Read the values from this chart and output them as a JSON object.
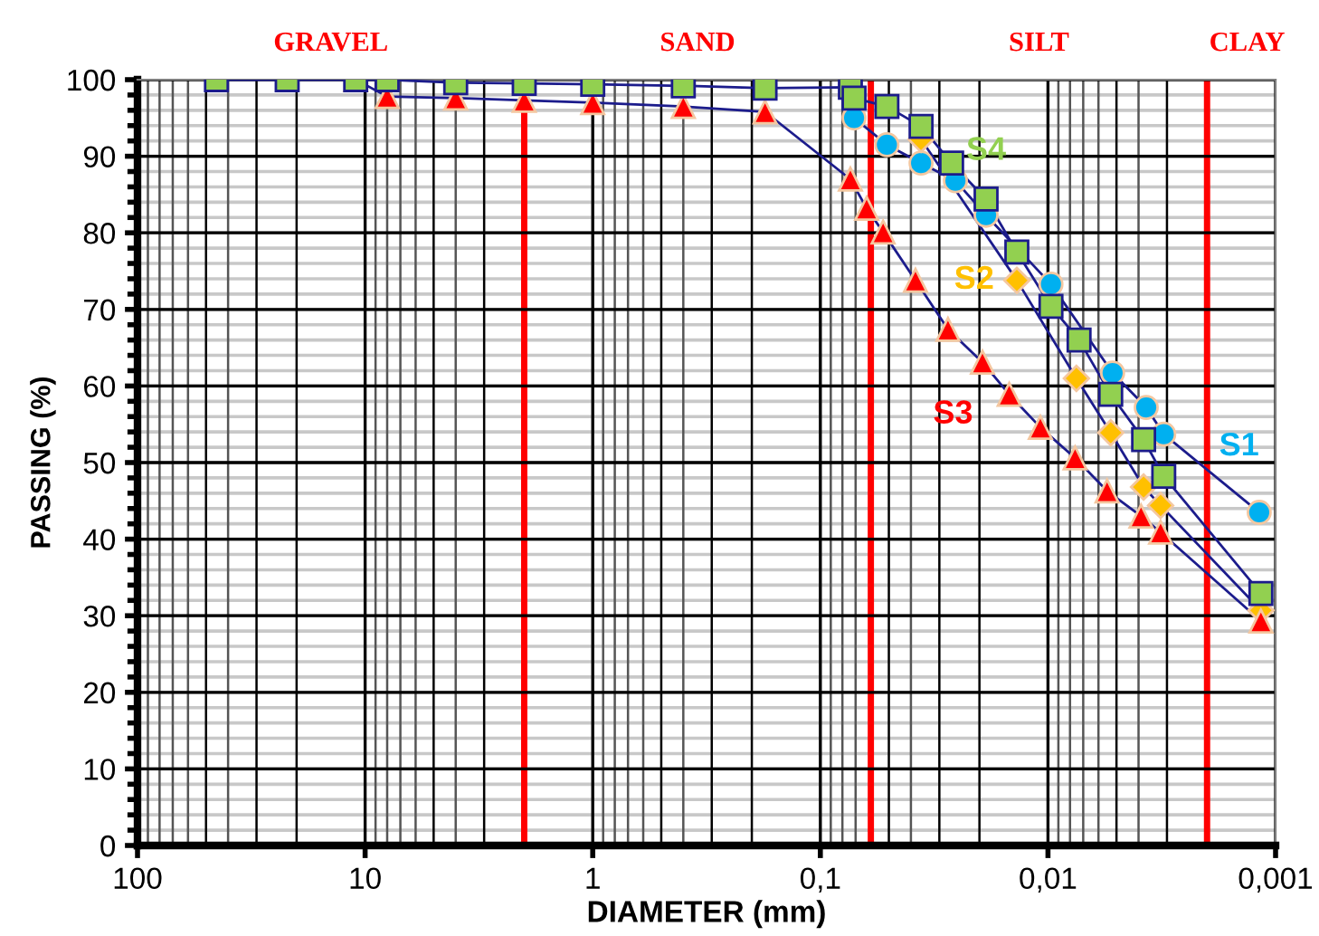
{
  "chart_data": {
    "type": "line",
    "xlabel": "DIAMETER (mm)",
    "ylabel": "PASSING (%)",
    "log": "x",
    "xlim": [
      100,
      0.001
    ],
    "ylim": [
      0,
      100
    ],
    "xticks": [
      {
        "value": 100,
        "label": "100"
      },
      {
        "value": 10,
        "label": "10"
      },
      {
        "value": 1,
        "label": "1"
      },
      {
        "value": 0.1,
        "label": "0,1"
      },
      {
        "value": 0.01,
        "label": "0,01"
      },
      {
        "value": 0.001,
        "label": "0,001"
      }
    ],
    "yticks": [
      0,
      10,
      20,
      30,
      40,
      50,
      60,
      70,
      80,
      90,
      100
    ],
    "grid": true,
    "legend": false,
    "series": [
      {
        "name": "S1",
        "color": "#00b0f0",
        "marker": "circle",
        "x": [
          0.0711,
          0.051,
          0.0361,
          0.0255,
          0.0187,
          0.0097,
          0.0052,
          0.0037,
          0.0031,
          0.00118
        ],
        "values": [
          95.0,
          91.5,
          89.1,
          86.8,
          82.3,
          73.3,
          61.7,
          57.2,
          53.7,
          43.5
        ]
      },
      {
        "name": "S2",
        "color": "#ffc000",
        "marker": "diamond",
        "x": [
          0.0361,
          0.0137,
          0.0075,
          0.0053,
          0.0038,
          0.0032,
          0.00116
        ],
        "values": [
          92.2,
          73.8,
          61.0,
          53.9,
          46.8,
          44.4,
          30.7
        ]
      },
      {
        "name": "S3",
        "color": "#ff0000",
        "marker": "triangle",
        "x": [
          11,
          8,
          4,
          2,
          1,
          0.4,
          0.175,
          0.0738,
          0.0626,
          0.053,
          0.0382,
          0.0275,
          0.0194,
          0.0148,
          0.0108,
          0.0076,
          0.0055,
          0.0039,
          0.0032,
          0.00116
        ],
        "values": [
          100,
          97.8,
          97.6,
          97.3,
          97.0,
          96.5,
          95.8,
          87.0,
          83.2,
          80.1,
          73.8,
          67.4,
          63.1,
          58.9,
          54.6,
          50.6,
          46.3,
          43.0,
          40.9,
          29.3
        ]
      },
      {
        "name": "S4",
        "color": "#92d050",
        "marker": "square",
        "x": [
          45,
          22,
          11,
          8,
          4,
          2,
          1,
          0.4,
          0.175,
          0.0738,
          0.0711,
          0.051,
          0.0361,
          0.0265,
          0.0187,
          0.0137,
          0.0097,
          0.0073,
          0.0053,
          0.0038,
          0.0031,
          0.00116
        ],
        "values": [
          100,
          100,
          100,
          100,
          99.6,
          99.5,
          99.4,
          99.2,
          98.9,
          99.0,
          97.6,
          96.5,
          93.9,
          89.1,
          84.4,
          77.5,
          70.4,
          66.0,
          58.9,
          53.0,
          48.2,
          32.9
        ]
      }
    ],
    "ref_lines": [
      {
        "axis": "x",
        "value": 2,
        "color": "#ff0000"
      },
      {
        "axis": "x",
        "value": 0.06,
        "color": "#ff0000"
      },
      {
        "axis": "x",
        "value": 0.002,
        "color": "#ff0000"
      }
    ],
    "annotations": [
      "GRAVEL",
      "SAND",
      "SILT",
      "CLAY"
    ]
  }
}
